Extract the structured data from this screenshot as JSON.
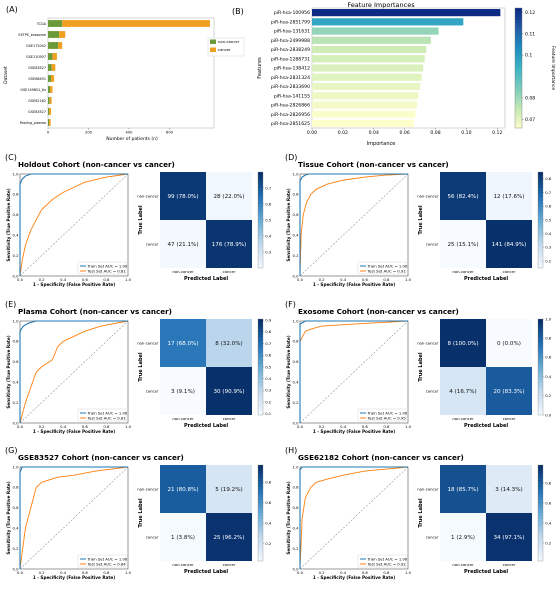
{
  "panel_a": {
    "letter": "(A)",
    "chart_data": {
      "type": "bar",
      "orientation": "horizontal",
      "stacked": true,
      "categories": [
        "TCGA",
        "EXTPE_exosome",
        "GSE172042",
        "GSE110907",
        "GSE83527",
        "GSE68491",
        "GSE149851_tis",
        "GSE62182",
        "GSE83527",
        "Pooling_plasma"
      ],
      "series": [
        {
          "name": "non-cancer",
          "color": "#6a9a3a",
          "values": [
            70,
            55,
            50,
            22,
            18,
            15,
            10,
            8,
            5,
            5
          ]
        },
        {
          "name": "cancer",
          "color": "#f0a020",
          "values": [
            730,
            30,
            20,
            22,
            18,
            15,
            12,
            10,
            10,
            8
          ]
        }
      ],
      "xlabel": "Number of patients (n)",
      "ylabel": "Dataset",
      "xticks": [
        0,
        200,
        400,
        600
      ],
      "xlim": [
        0,
        820
      ],
      "legend_position": "right"
    }
  },
  "panel_b": {
    "letter": "(B)",
    "chart_data": {
      "type": "bar",
      "orientation": "horizontal",
      "title": "Feature Importances",
      "categories": [
        "piR-hsa-100956",
        "piR-hsa-2851799",
        "piR-hsa-131631",
        "piR-hsa-2499988",
        "piR-hsa-2838249",
        "piR-hsa-1288731",
        "piR-hsa-138412",
        "piR-hsa-2831324",
        "piR-hsa-2833690",
        "piR-hsa-141155",
        "piR-hsa-2826866",
        "piR-hsa-2826956",
        "piR-hsa-2851625"
      ],
      "values": [
        0.122,
        0.098,
        0.082,
        0.077,
        0.074,
        0.073,
        0.072,
        0.071,
        0.07,
        0.069,
        0.068,
        0.067,
        0.066
      ],
      "xlabel": "Importance",
      "ylabel": "Features",
      "xticks": [
        0.0,
        0.02,
        0.04,
        0.06,
        0.08,
        0.1,
        0.12
      ],
      "xlim": [
        0,
        0.125
      ],
      "colorbar_label": "Feature Importance",
      "colorbar_ticks": [
        0.07,
        0.08,
        0.1,
        0.11,
        0.12
      ],
      "colorbar_range": [
        0.066,
        0.122
      ]
    }
  },
  "roc_common": {
    "xlabel": "1 - Specificity (False Positive Rate)",
    "ylabel": "Sensitivity (True Positive Rate)",
    "ticks": [
      "0.0",
      "0.2",
      "0.4",
      "0.6",
      "0.8",
      "1.0"
    ],
    "train_label_prefix": "Train Set AUC = ",
    "test_label_prefix": "Test Set AUC = ",
    "train_color": "#1f77b4",
    "test_color": "#ff7f0e"
  },
  "cm_common": {
    "xlabel": "Predicted Label",
    "ylabel": "True Label",
    "class_labels": [
      "non-cancer",
      "cancer"
    ]
  },
  "panels": [
    {
      "letter": "(C)",
      "title": "Holdout Cohort (non-cancer vs cancer)",
      "chart_data": [
        {
          "type": "line",
          "train_auc": "1.00",
          "test_auc": "0.81",
          "train_curve": [
            [
              0,
              0
            ],
            [
              0,
              0.9
            ],
            [
              0.02,
              0.95
            ],
            [
              0.05,
              0.98
            ],
            [
              0.1,
              1.0
            ],
            [
              1,
              1
            ]
          ],
          "test_curve": [
            [
              0,
              0
            ],
            [
              0.02,
              0.15
            ],
            [
              0.05,
              0.3
            ],
            [
              0.1,
              0.45
            ],
            [
              0.15,
              0.55
            ],
            [
              0.2,
              0.65
            ],
            [
              0.3,
              0.75
            ],
            [
              0.4,
              0.82
            ],
            [
              0.5,
              0.87
            ],
            [
              0.6,
              0.92
            ],
            [
              0.8,
              0.97
            ],
            [
              1,
              1
            ]
          ]
        },
        {
          "type": "heatmap",
          "cells": [
            "99 (78.0%)",
            "28 (22.0%)",
            "47 (21.1%)",
            "176 (78.9%)"
          ],
          "fractions": [
            0.78,
            0.22,
            0.211,
            0.789
          ],
          "colorbar_ticks": [
            "0.7",
            "0.6",
            "0.5",
            "0.4",
            "0.3"
          ],
          "colorbar_range": [
            0.2,
            0.8
          ]
        }
      ]
    },
    {
      "letter": "(D)",
      "title": "Tissue Cohort (non-cancer vs cancer)",
      "chart_data": [
        {
          "type": "line",
          "train_auc": "1.00",
          "test_auc": "0.91",
          "train_curve": [
            [
              0,
              0
            ],
            [
              0,
              0.93
            ],
            [
              0.02,
              0.97
            ],
            [
              0.05,
              0.99
            ],
            [
              0.08,
              1.0
            ],
            [
              1,
              1
            ]
          ],
          "test_curve": [
            [
              0,
              0
            ],
            [
              0.01,
              0.4
            ],
            [
              0.03,
              0.6
            ],
            [
              0.06,
              0.72
            ],
            [
              0.1,
              0.8
            ],
            [
              0.15,
              0.85
            ],
            [
              0.25,
              0.9
            ],
            [
              0.4,
              0.94
            ],
            [
              0.6,
              0.97
            ],
            [
              0.8,
              0.99
            ],
            [
              1,
              1
            ]
          ]
        },
        {
          "type": "heatmap",
          "cells": [
            "56 (82.4%)",
            "12 (17.6%)",
            "25 (15.1%)",
            "141 (84.9%)"
          ],
          "fractions": [
            0.824,
            0.176,
            0.151,
            0.849
          ],
          "colorbar_ticks": [
            "0.8",
            "0.7",
            "0.6",
            "0.5",
            "0.4",
            "0.3",
            "0.2"
          ],
          "colorbar_range": [
            0.15,
            0.85
          ]
        }
      ]
    },
    {
      "letter": "(E)",
      "title": "Plasma Cohort (non-cancer vs cancer)",
      "chart_data": [
        {
          "type": "line",
          "train_auc": "1.00",
          "test_auc": "0.81",
          "train_curve": [
            [
              0,
              0
            ],
            [
              0,
              0.9
            ],
            [
              0.03,
              0.95
            ],
            [
              0.08,
              0.98
            ],
            [
              0.15,
              1.0
            ],
            [
              1,
              1
            ]
          ],
          "test_curve": [
            [
              0,
              0
            ],
            [
              0.05,
              0.2
            ],
            [
              0.1,
              0.35
            ],
            [
              0.15,
              0.5
            ],
            [
              0.2,
              0.55
            ],
            [
              0.3,
              0.62
            ],
            [
              0.35,
              0.75
            ],
            [
              0.4,
              0.8
            ],
            [
              0.5,
              0.85
            ],
            [
              0.6,
              0.9
            ],
            [
              0.75,
              0.95
            ],
            [
              1,
              1
            ]
          ]
        },
        {
          "type": "heatmap",
          "cells": [
            "17 (68.0%)",
            "8 (32.0%)",
            "3 (9.1%)",
            "30 (90.9%)"
          ],
          "fractions": [
            0.68,
            0.32,
            0.091,
            0.909
          ],
          "colorbar_ticks": [
            "0.9",
            "0.8",
            "0.7",
            "0.6",
            "0.5",
            "0.4",
            "0.3",
            "0.2",
            "0.1"
          ],
          "colorbar_range": [
            0.09,
            0.91
          ]
        }
      ]
    },
    {
      "letter": "(F)",
      "title": "Exosome Cohort (non-cancer vs cancer)",
      "chart_data": [
        {
          "type": "line",
          "train_auc": "1.00",
          "test_auc": "0.95",
          "train_curve": [
            [
              0,
              0
            ],
            [
              0,
              0.97
            ],
            [
              0.05,
              1.0
            ],
            [
              1,
              1
            ]
          ],
          "test_curve": [
            [
              0,
              0
            ],
            [
              0,
              0.8
            ],
            [
              0.05,
              0.9
            ],
            [
              0.1,
              0.92
            ],
            [
              0.2,
              0.95
            ],
            [
              0.5,
              0.97
            ],
            [
              1,
              1
            ]
          ]
        },
        {
          "type": "heatmap",
          "cells": [
            "8 (100.0%)",
            "0 (0.0%)",
            "4 (16.7%)",
            "20 (83.3%)"
          ],
          "fractions": [
            1.0,
            0.0,
            0.167,
            0.833
          ],
          "colorbar_ticks": [
            "1.0",
            "0.8",
            "0.6",
            "0.4",
            "0.2",
            "0.0"
          ],
          "colorbar_range": [
            0.0,
            1.0
          ]
        }
      ]
    },
    {
      "letter": "(G)",
      "title": "GSE83527 Cohort (non-cancer vs cancer)",
      "chart_data": [
        {
          "type": "line",
          "train_auc": "1.00",
          "test_auc": "0.84",
          "train_curve": [
            [
              0,
              0
            ],
            [
              0,
              0.95
            ],
            [
              0.02,
              1.0
            ],
            [
              1,
              1
            ]
          ],
          "test_curve": [
            [
              0,
              0
            ],
            [
              0.05,
              0.4
            ],
            [
              0.1,
              0.6
            ],
            [
              0.15,
              0.8
            ],
            [
              0.2,
              0.85
            ],
            [
              0.35,
              0.9
            ],
            [
              0.5,
              0.92
            ],
            [
              0.7,
              0.96
            ],
            [
              1,
              1
            ]
          ]
        },
        {
          "type": "heatmap",
          "cells": [
            "21 (80.8%)",
            "5 (19.2%)",
            "1 (3.8%)",
            "25 (96.2%)"
          ],
          "fractions": [
            0.808,
            0.192,
            0.038,
            0.962
          ],
          "colorbar_ticks": [
            "0.8",
            "0.6",
            "0.4",
            "0.2"
          ],
          "colorbar_range": [
            0.03,
            0.97
          ]
        }
      ]
    },
    {
      "letter": "(H)",
      "title": "GSE62182 Cohort (non-cancer vs cancer)",
      "chart_data": [
        {
          "type": "line",
          "train_auc": "1.00",
          "test_auc": "0.92",
          "train_curve": [
            [
              0,
              0
            ],
            [
              0,
              0.97
            ],
            [
              0.02,
              1.0
            ],
            [
              1,
              1
            ]
          ],
          "test_curve": [
            [
              0,
              0
            ],
            [
              0.02,
              0.5
            ],
            [
              0.05,
              0.7
            ],
            [
              0.1,
              0.8
            ],
            [
              0.15,
              0.85
            ],
            [
              0.25,
              0.88
            ],
            [
              0.4,
              0.92
            ],
            [
              0.6,
              0.96
            ],
            [
              1,
              1
            ]
          ]
        },
        {
          "type": "heatmap",
          "cells": [
            "18 (85.7%)",
            "3 (14.3%)",
            "1 (2.9%)",
            "34 (97.1%)"
          ],
          "fractions": [
            0.857,
            0.143,
            0.029,
            0.971
          ],
          "colorbar_ticks": [
            "0.8",
            "0.6",
            "0.4",
            "0.2"
          ],
          "colorbar_range": [
            0.02,
            0.98
          ]
        }
      ]
    }
  ]
}
